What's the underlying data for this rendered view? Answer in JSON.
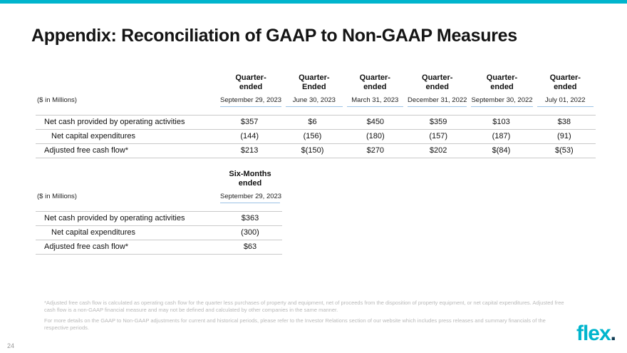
{
  "slide": {
    "title": "Appendix: Reconciliation of GAAP to Non-GAAP Measures",
    "page_number": "24",
    "accent_color": "#00b5cd"
  },
  "logo": {
    "text": "flex",
    "dot": ".",
    "color": "#00b5cd"
  },
  "quarterly_table": {
    "unit_label": "($ in Millions)",
    "columns": [
      {
        "period_line1": "Quarter-",
        "period_line2": "ended",
        "date": "September 29, 2023"
      },
      {
        "period_line1": "Quarter-",
        "period_line2": "Ended",
        "date": "June 30, 2023"
      },
      {
        "period_line1": "Quarter-",
        "period_line2": "ended",
        "date": "March 31, 2023"
      },
      {
        "period_line1": "Quarter-",
        "period_line2": "ended",
        "date": "December 31, 2022"
      },
      {
        "period_line1": "Quarter-",
        "period_line2": "ended",
        "date": "September 30, 2022"
      },
      {
        "period_line1": "Quarter-",
        "period_line2": "ended",
        "date": "July 01, 2022"
      }
    ],
    "rows": [
      {
        "label": "Net cash provided by operating activities",
        "values": [
          "$357",
          "$6",
          "$450",
          "$359",
          "$103",
          "$38"
        ]
      },
      {
        "label": "Net capital expenditures",
        "values": [
          "(144)",
          "(156)",
          "(180)",
          "(157)",
          "(187)",
          "(91)"
        ]
      },
      {
        "label": "Adjusted free cash flow*",
        "values": [
          "$213",
          "$(150)",
          "$270",
          "$202",
          "$(84)",
          "$(53)"
        ]
      }
    ]
  },
  "six_month_table": {
    "unit_label": "($ in Millions)",
    "column": {
      "period_line1": "Six-Months",
      "period_line2": "ended",
      "date": "September 29, 2023"
    },
    "rows": [
      {
        "label": "Net cash provided by operating activities",
        "value": "$363"
      },
      {
        "label": "Net capital expenditures",
        "value": "(300)"
      },
      {
        "label": "Adjusted free cash flow*",
        "value": "$63"
      }
    ]
  },
  "footnotes": {
    "note1": "*Adjusted free cash flow is calculated as operating cash flow for the quarter less purchases of property and equipment, net of proceeds from the disposition of property equipment, or net capital expenditures. Adjusted free cash flow is a non-GAAP financial measure and may not be defined and calculated by other companies in the same manner.",
    "note2": "For more details on the GAAP to Non-GAAP adjustments for current and historical periods, please refer to the Investor Relations section of our website which includes press releases and summary financials of the respective periods."
  }
}
